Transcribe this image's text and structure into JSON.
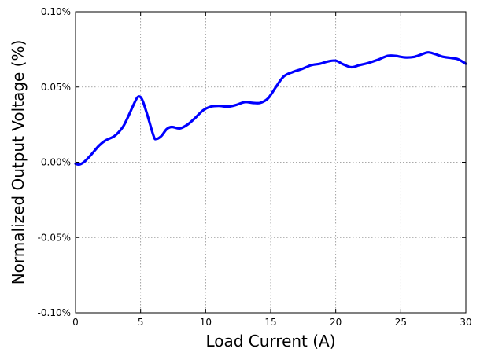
{
  "chart_data": {
    "type": "line",
    "xlabel": "Load Current (A)",
    "ylabel": "Normalized Output Voltage (%)",
    "xlim": [
      0,
      30
    ],
    "ylim": [
      -0.1,
      0.1
    ],
    "xticks": [
      0,
      5,
      10,
      15,
      20,
      25,
      30
    ],
    "xtick_labels": [
      "0",
      "5",
      "10",
      "15",
      "20",
      "25",
      "30"
    ],
    "yticks": [
      0.1,
      0.05,
      0.0,
      -0.05,
      -0.1
    ],
    "ytick_labels": [
      "0.10%",
      "0.05%",
      "0.00%",
      "-0.05%",
      "-0.10%"
    ],
    "grid": true,
    "legend": "none",
    "series": [
      {
        "color": "#0000ff",
        "x": [
          0,
          0.3,
          0.7,
          1.2,
          1.8,
          2.3,
          3.0,
          3.6,
          4.0,
          4.5,
          4.8,
          5.1,
          5.5,
          6.0,
          6.2,
          6.6,
          7.0,
          7.4,
          8.0,
          8.6,
          9.2,
          9.8,
          10.4,
          11.0,
          11.7,
          12.3,
          13.0,
          13.6,
          14.2,
          14.8,
          15.4,
          16.0,
          16.7,
          17.4,
          18.1,
          18.8,
          19.4,
          20.0,
          20.6,
          21.2,
          21.8,
          22.5,
          23.2,
          24.0,
          24.6,
          25.3,
          26.0,
          26.6,
          27.1,
          27.6,
          28.2,
          28.8,
          29.4,
          30.0
        ],
        "y": [
          -0.001,
          -0.0015,
          0.0005,
          0.005,
          0.011,
          0.0145,
          0.0175,
          0.023,
          0.0295,
          0.039,
          0.0435,
          0.042,
          0.032,
          0.0175,
          0.0155,
          0.0175,
          0.022,
          0.0235,
          0.0225,
          0.025,
          0.0295,
          0.0345,
          0.037,
          0.0375,
          0.037,
          0.038,
          0.04,
          0.0395,
          0.0395,
          0.0425,
          0.05,
          0.057,
          0.06,
          0.062,
          0.0645,
          0.0655,
          0.067,
          0.0675,
          0.065,
          0.0632,
          0.0645,
          0.066,
          0.068,
          0.0707,
          0.0707,
          0.0697,
          0.07,
          0.0717,
          0.073,
          0.072,
          0.0702,
          0.0694,
          0.0685,
          0.0655
        ]
      }
    ]
  }
}
